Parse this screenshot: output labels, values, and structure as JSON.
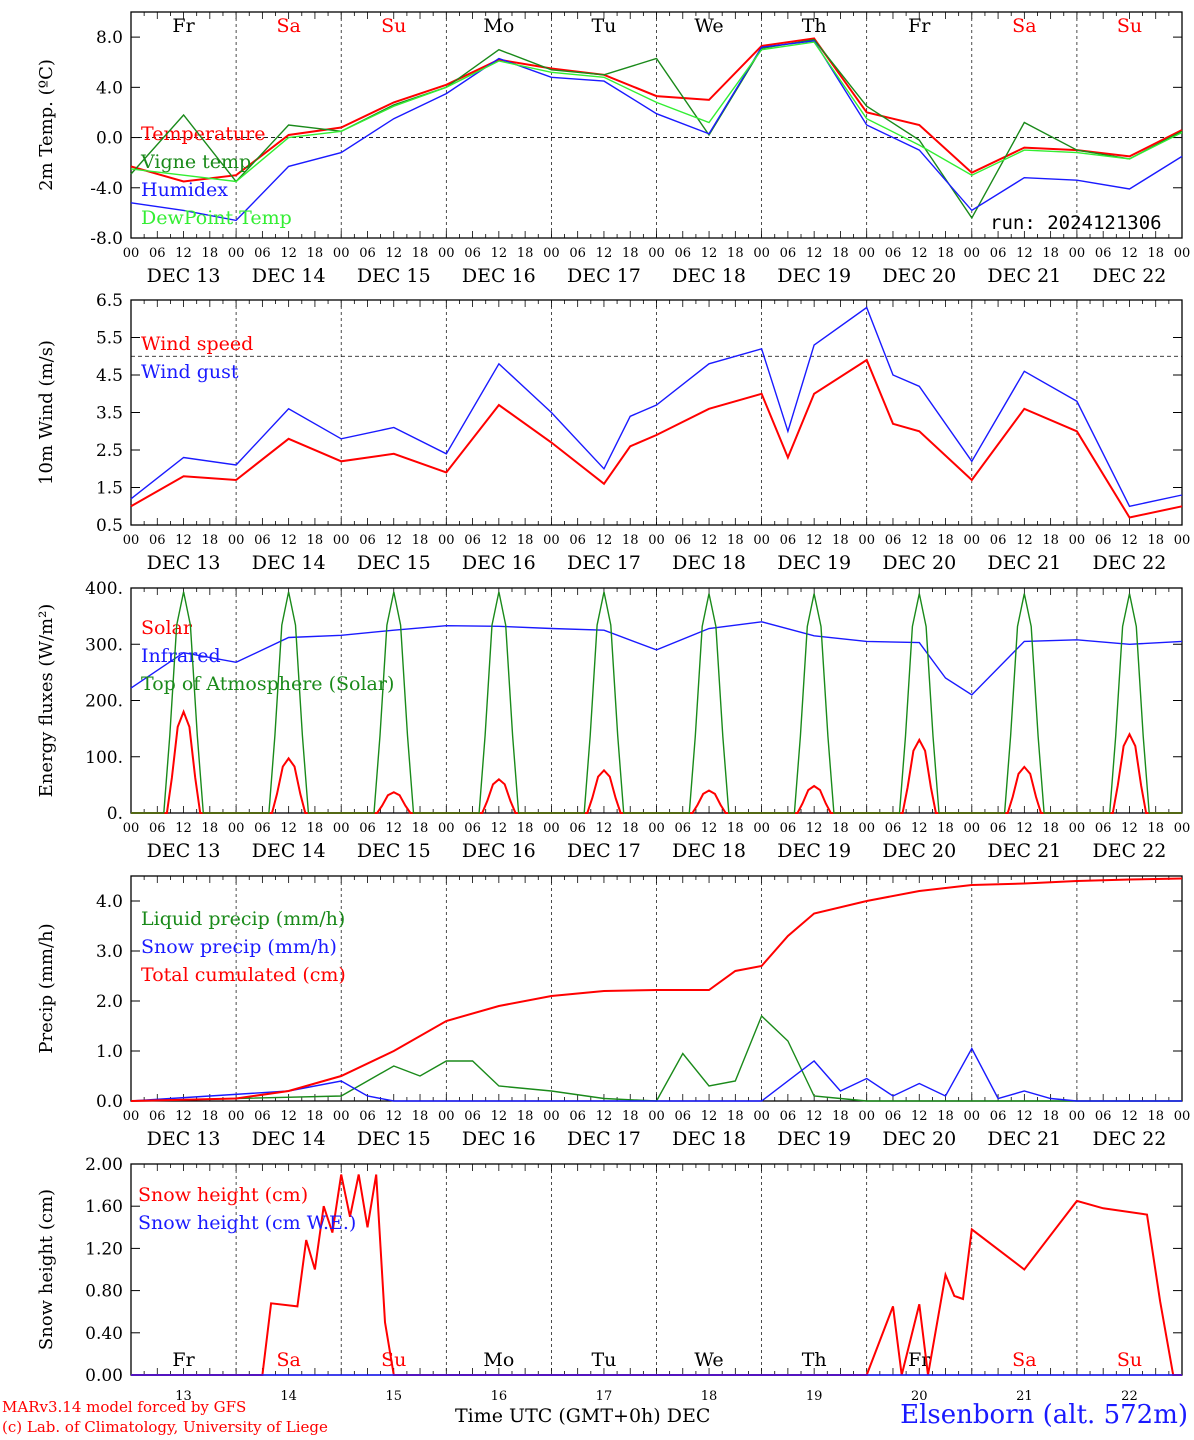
{
  "run_label": "run: 2024121306",
  "footer": {
    "credit_line1": "MARv3.14 model forced by GFS",
    "credit_line2": "(c) Lab. of Climatology, University of Liege",
    "station": "Elsenborn (alt. 572m)",
    "x_axis_title": "Time UTC (GMT+0h) DEC"
  },
  "colors": {
    "red": "#ff0000",
    "green": "#1a8a1a",
    "blue": "#1a1aff",
    "light_green": "#33ee33",
    "axis": "#000000"
  },
  "time_axis": {
    "hour_ticks": [
      "00",
      "06",
      "12",
      "18"
    ],
    "dates": [
      "DEC 13",
      "DEC 14",
      "DEC 15",
      "DEC 16",
      "DEC 17",
      "DEC 18",
      "DEC 19",
      "DEC 20",
      "DEC 21",
      "DEC 22"
    ],
    "weekdays": [
      "Fr",
      "Sa",
      "Su",
      "Mo",
      "Tu",
      "We",
      "Th",
      "Fr",
      "Sa",
      "Su"
    ],
    "weekend_days": [
      1,
      2,
      8,
      9
    ],
    "day_numbers": [
      "13",
      "14",
      "15",
      "16",
      "17",
      "18",
      "19",
      "20",
      "21",
      "22"
    ]
  },
  "chart_data": [
    {
      "id": "temp",
      "type": "line",
      "ylabel": "2m Temp. (ºC)",
      "ylim": [
        -8,
        10
      ],
      "yticks": [
        "-8.0",
        "-4.0",
        "0.0",
        "4.0",
        "8.0"
      ],
      "ytick_values": [
        -8,
        -4,
        0,
        4,
        8
      ],
      "ref_line": 0,
      "x_unit": "hours since 2024-12-13 00 UTC",
      "series": [
        {
          "name": "Temperature",
          "color": "red",
          "x": [
            0,
            12,
            24,
            36,
            48,
            60,
            72,
            84,
            96,
            108,
            120,
            132,
            144,
            156,
            168,
            180,
            192,
            204,
            216,
            228,
            240
          ],
          "values": [
            -2.3,
            -3.5,
            -3.0,
            0.2,
            0.8,
            2.8,
            4.2,
            6.2,
            5.5,
            5.0,
            3.3,
            3.0,
            7.3,
            7.9,
            2.0,
            1.0,
            -2.8,
            -0.8,
            -1.0,
            -1.5,
            0.6
          ]
        },
        {
          "name": "Vigne temp",
          "color": "green",
          "x": [
            0,
            12,
            24,
            36,
            48,
            60,
            72,
            84,
            96,
            108,
            120,
            132,
            144,
            156,
            168,
            180,
            192,
            204,
            216,
            228,
            240
          ],
          "values": [
            -2.9,
            1.8,
            -3.5,
            1.0,
            0.5,
            2.6,
            4.0,
            7.0,
            5.4,
            5.0,
            6.3,
            0.2,
            7.1,
            7.8,
            2.5,
            -0.2,
            -6.4,
            1.2,
            -1.0,
            -1.7,
            0.5
          ]
        },
        {
          "name": "Humidex",
          "color": "blue",
          "x": [
            0,
            12,
            24,
            36,
            48,
            60,
            72,
            84,
            96,
            108,
            120,
            132,
            144,
            156,
            168,
            180,
            192,
            204,
            216,
            228,
            240
          ],
          "values": [
            -5.2,
            -5.8,
            -6.6,
            -2.3,
            -1.2,
            1.5,
            3.5,
            6.3,
            4.8,
            4.5,
            1.9,
            0.3,
            7.2,
            7.7,
            1.0,
            -1.0,
            -5.8,
            -3.2,
            -3.4,
            -4.1,
            -1.5
          ]
        },
        {
          "name": "DewPoint Temp",
          "color": "light_green",
          "x": [
            0,
            12,
            24,
            36,
            48,
            60,
            72,
            84,
            96,
            108,
            120,
            132,
            144,
            156,
            168,
            180,
            192,
            204,
            216,
            228,
            240
          ],
          "values": [
            -2.5,
            -3.0,
            -3.5,
            0.0,
            0.5,
            2.5,
            4.0,
            6.1,
            5.2,
            4.8,
            2.8,
            1.2,
            7.0,
            7.6,
            1.5,
            -0.6,
            -3.0,
            -1.0,
            -1.2,
            -1.7,
            0.4
          ]
        }
      ]
    },
    {
      "id": "wind",
      "type": "line",
      "ylabel": "10m Wind (m/s)",
      "ylim": [
        0.5,
        6.5
      ],
      "yticks": [
        "0.5",
        "1.5",
        "2.5",
        "3.5",
        "4.5",
        "5.5",
        "6.5"
      ],
      "ytick_values": [
        0.5,
        1.5,
        2.5,
        3.5,
        4.5,
        5.5,
        6.5
      ],
      "ref_line": 5.0,
      "series": [
        {
          "name": "Wind speed",
          "color": "red",
          "x": [
            0,
            12,
            24,
            36,
            48,
            60,
            72,
            84,
            96,
            108,
            114,
            120,
            132,
            144,
            150,
            156,
            168,
            174,
            180,
            192,
            204,
            216,
            228,
            240
          ],
          "values": [
            1.0,
            1.8,
            1.7,
            2.8,
            2.2,
            2.4,
            1.9,
            3.7,
            2.7,
            1.6,
            2.6,
            2.9,
            3.6,
            4.0,
            2.3,
            4.0,
            4.9,
            3.2,
            3.0,
            1.7,
            3.6,
            3.0,
            0.7,
            1.0
          ]
        },
        {
          "name": "Wind gust",
          "color": "blue",
          "x": [
            0,
            12,
            24,
            36,
            48,
            60,
            72,
            84,
            96,
            108,
            114,
            120,
            132,
            144,
            150,
            156,
            168,
            174,
            180,
            192,
            204,
            216,
            228,
            240
          ],
          "values": [
            1.2,
            2.3,
            2.1,
            3.6,
            2.8,
            3.1,
            2.4,
            4.8,
            3.5,
            2.0,
            3.4,
            3.7,
            4.8,
            5.2,
            3.0,
            5.3,
            6.3,
            4.5,
            4.2,
            2.2,
            4.6,
            3.8,
            1.0,
            1.3
          ]
        }
      ]
    },
    {
      "id": "energy",
      "type": "line",
      "ylabel": "Energy fluxes (W/m²)",
      "ylim": [
        0,
        400
      ],
      "yticks": [
        "0.",
        "100.",
        "200.",
        "300.",
        "400."
      ],
      "ytick_values": [
        0,
        100,
        200,
        300,
        400
      ],
      "daily_peak_hour": 12,
      "series": [
        {
          "name": "Solar",
          "color": "red",
          "daily_peaks": [
            180,
            97,
            37,
            60,
            76,
            40,
            48,
            130,
            82,
            140
          ]
        },
        {
          "name": "Infrared",
          "color": "blue",
          "x": [
            0,
            12,
            24,
            36,
            48,
            60,
            72,
            84,
            96,
            108,
            120,
            132,
            144,
            156,
            168,
            180,
            186,
            192,
            204,
            216,
            228,
            240
          ],
          "values": [
            222,
            285,
            268,
            312,
            316,
            325,
            333,
            332,
            328,
            325,
            290,
            328,
            340,
            315,
            305,
            303,
            240,
            210,
            305,
            308,
            300,
            305
          ]
        },
        {
          "name": "Top of Atmosphere (Solar)",
          "color": "green",
          "daily_peaks": [
            393,
            393,
            393,
            393,
            393,
            390,
            390,
            390,
            390,
            390
          ]
        }
      ]
    },
    {
      "id": "precip",
      "type": "line",
      "ylabel": "Precip (mm/h)",
      "ylim": [
        0,
        4.5
      ],
      "yticks": [
        "0.0",
        "1.0",
        "2.0",
        "3.0",
        "4.0"
      ],
      "ytick_values": [
        0,
        1,
        2,
        3,
        4
      ],
      "series": [
        {
          "name": "Liquid precip (mm/h)",
          "color": "green",
          "x": [
            0,
            48,
            60,
            66,
            72,
            78,
            84,
            96,
            108,
            120,
            126,
            132,
            138,
            144,
            150,
            156,
            162,
            168,
            180,
            240
          ],
          "values": [
            0,
            0.1,
            0.7,
            0.5,
            0.8,
            0.8,
            0.3,
            0.2,
            0.05,
            0,
            0.95,
            0.3,
            0.4,
            1.7,
            1.2,
            0.1,
            0.05,
            0,
            0,
            0
          ]
        },
        {
          "name": "Snow precip (mm/h)",
          "color": "blue",
          "x": [
            0,
            36,
            48,
            54,
            60,
            72,
            144,
            156,
            162,
            168,
            174,
            180,
            186,
            192,
            198,
            204,
            210,
            216,
            240
          ],
          "values": [
            0,
            0.2,
            0.4,
            0.1,
            0,
            0,
            0,
            0.8,
            0.2,
            0.45,
            0.1,
            0.35,
            0.1,
            1.05,
            0.05,
            0.2,
            0.05,
            0,
            0
          ]
        },
        {
          "name": "Total cumulated (cm)",
          "color": "red",
          "x": [
            0,
            24,
            36,
            48,
            60,
            72,
            84,
            96,
            108,
            120,
            132,
            138,
            144,
            150,
            156,
            168,
            180,
            192,
            204,
            216,
            228,
            240
          ],
          "values": [
            0,
            0.05,
            0.2,
            0.5,
            1.0,
            1.6,
            1.9,
            2.1,
            2.2,
            2.22,
            2.22,
            2.6,
            2.7,
            3.3,
            3.75,
            4.0,
            4.2,
            4.32,
            4.35,
            4.4,
            4.43,
            4.45
          ]
        }
      ]
    },
    {
      "id": "snow",
      "type": "line",
      "ylabel": "Snow height (cm)",
      "ylim": [
        0,
        2.0
      ],
      "yticks": [
        "0.00",
        "0.40",
        "0.80",
        "1.20",
        "1.60",
        "2.00"
      ],
      "ytick_values": [
        0,
        0.4,
        0.8,
        1.2,
        1.6,
        2.0
      ],
      "series": [
        {
          "name": "Snow height (cm)",
          "color": "red",
          "x": [
            0,
            30,
            32,
            38,
            40,
            42,
            44,
            46,
            48,
            50,
            52,
            54,
            56,
            58,
            60,
            62,
            64,
            72,
            84,
            96,
            108,
            120,
            132,
            144,
            168,
            174,
            176,
            180,
            182,
            186,
            188,
            190,
            192,
            204,
            216,
            222,
            232,
            235,
            238,
            240
          ],
          "values": [
            0,
            0,
            0.68,
            0.65,
            1.28,
            1.0,
            1.6,
            1.35,
            1.9,
            1.5,
            1.9,
            1.4,
            1.9,
            0.5,
            0,
            0,
            0,
            0,
            0,
            0,
            0,
            0,
            0,
            0,
            0,
            0.65,
            0,
            0.67,
            0,
            0.95,
            0.75,
            0.72,
            1.38,
            1.0,
            1.65,
            1.58,
            1.52,
            0.7,
            0,
            0
          ]
        },
        {
          "name": "Snow height (cm W.E.)",
          "color": "blue",
          "x": [
            0,
            240
          ],
          "values": [
            0,
            0
          ]
        }
      ]
    }
  ]
}
